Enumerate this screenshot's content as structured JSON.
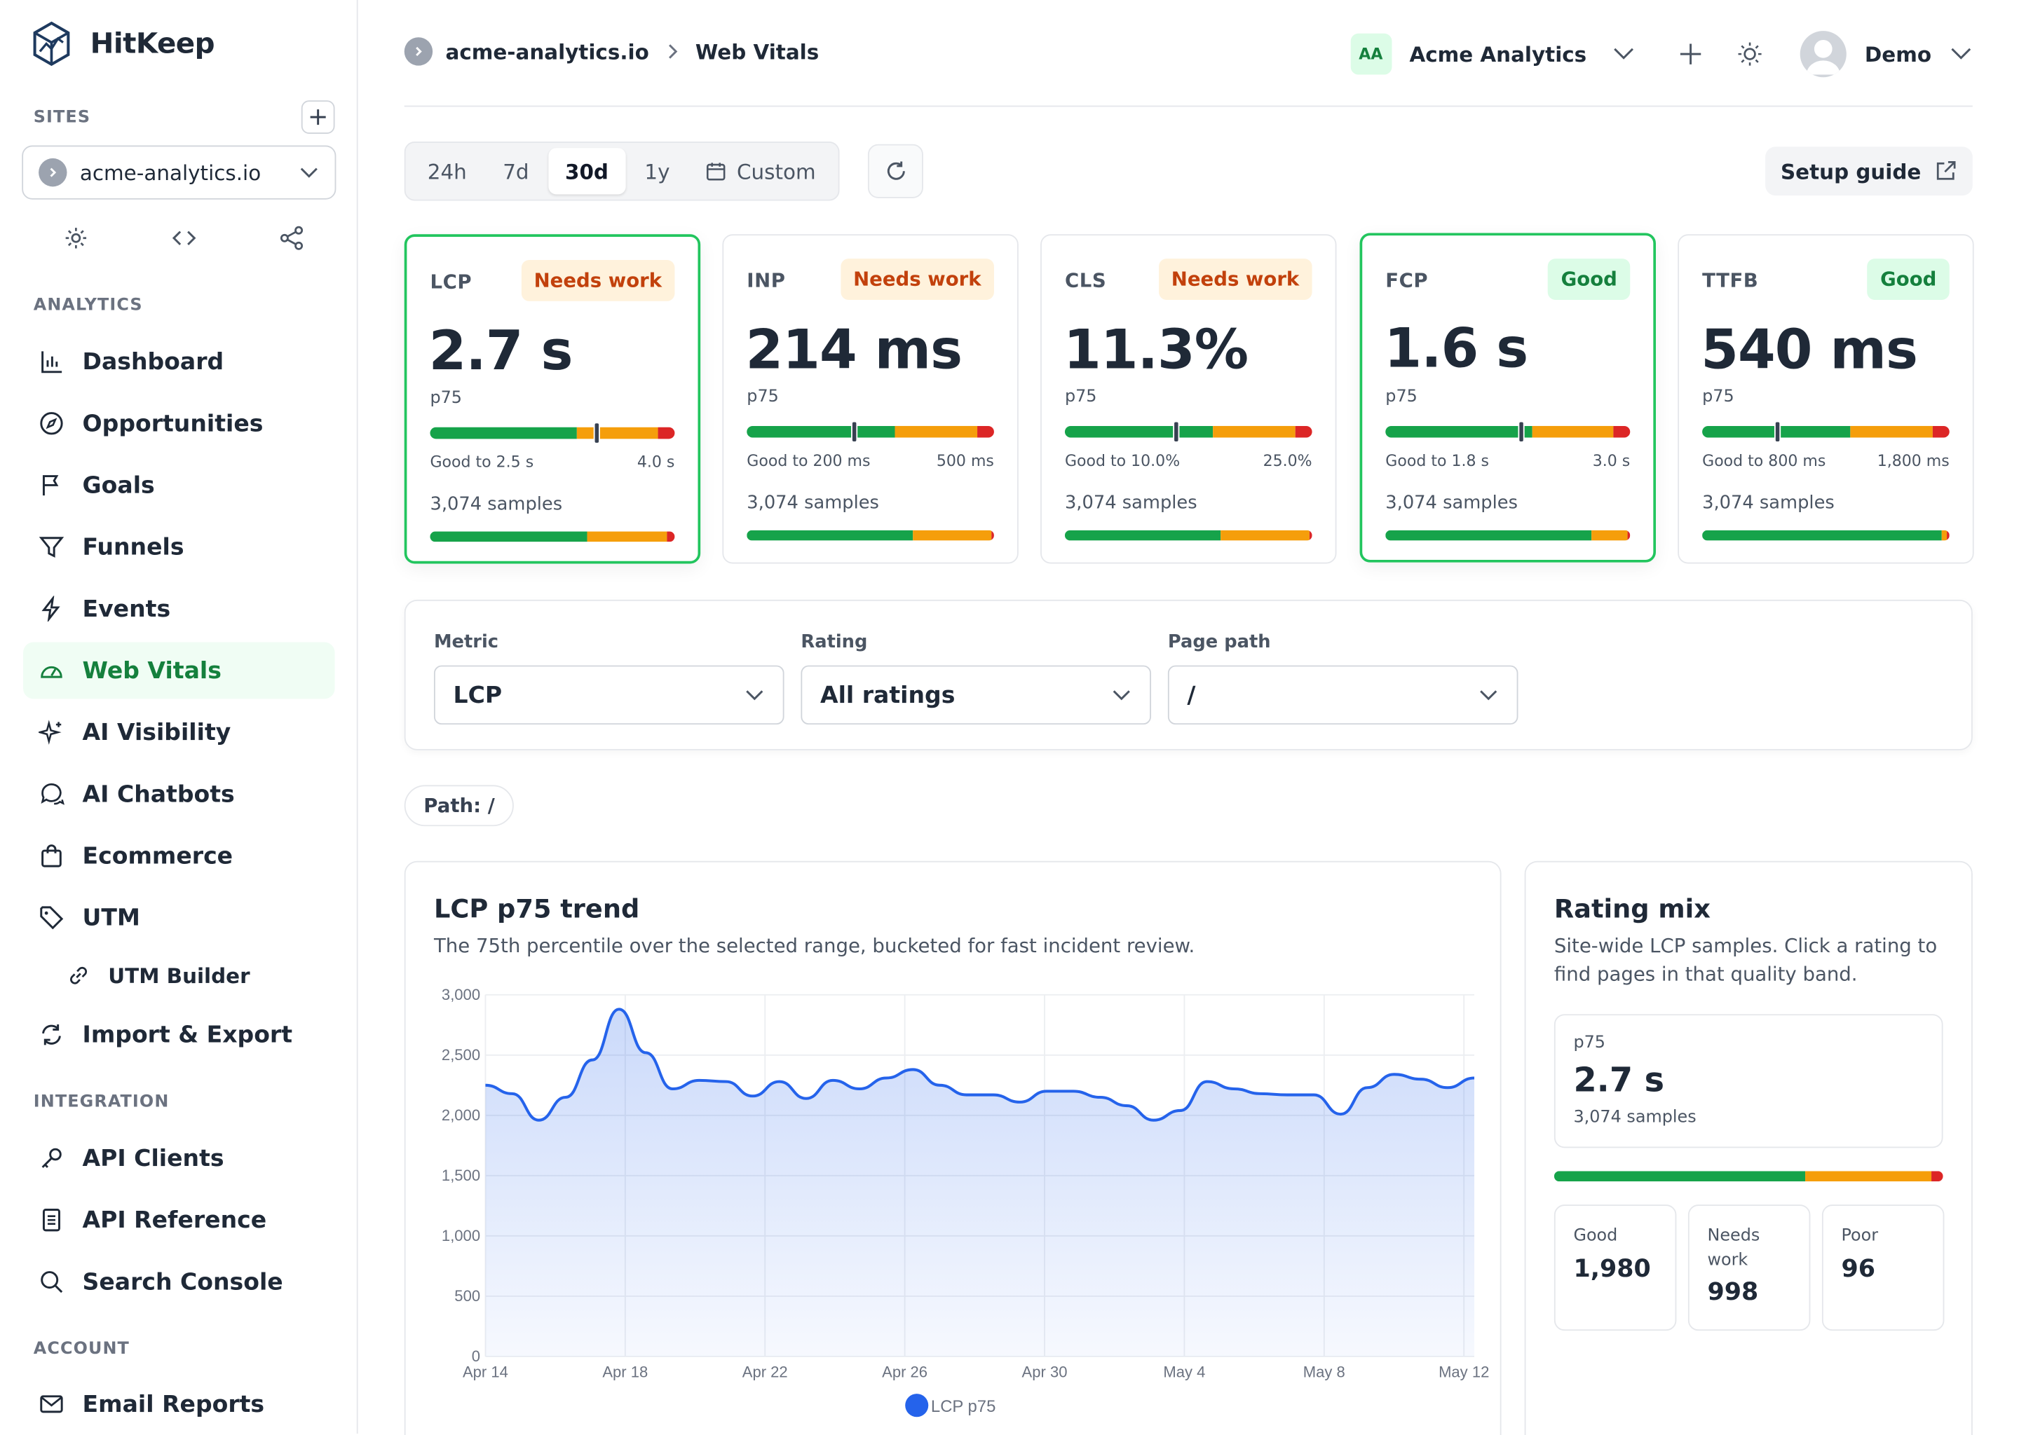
{
  "app": {
    "name": "HitKeep"
  },
  "sidebar": {
    "sites_label": "SITES",
    "site": "acme-analytics.io",
    "sections": {
      "analytics": "ANALYTICS",
      "integration": "INTEGRATION",
      "account": "ACCOUNT"
    },
    "items": [
      {
        "label": "Dashboard"
      },
      {
        "label": "Opportunities"
      },
      {
        "label": "Goals"
      },
      {
        "label": "Funnels"
      },
      {
        "label": "Events"
      },
      {
        "label": "Web Vitals"
      },
      {
        "label": "AI Visibility"
      },
      {
        "label": "AI Chatbots"
      },
      {
        "label": "Ecommerce"
      },
      {
        "label": "UTM"
      },
      {
        "label": "UTM Builder"
      },
      {
        "label": "Import & Export"
      },
      {
        "label": "API Clients"
      },
      {
        "label": "API Reference"
      },
      {
        "label": "Search Console"
      },
      {
        "label": "Email Reports"
      }
    ]
  },
  "header": {
    "breadcrumb": [
      "acme-analytics.io",
      "Web Vitals"
    ],
    "org_initials": "AA",
    "org_name": "Acme Analytics",
    "user": "Demo"
  },
  "toolbar": {
    "ranges": [
      "24h",
      "7d",
      "30d",
      "1y",
      "Custom"
    ],
    "selected_range": "30d",
    "setup_guide": "Setup guide"
  },
  "metrics": [
    {
      "name": "LCP",
      "status": "Needs work",
      "value": "2.7 s",
      "percentile": "p75",
      "good_label": "Good to 2.5 s",
      "poor_label": "4.0 s",
      "samples": "3,074 samples",
      "marker": 0.68,
      "mix": [
        0.64,
        0.33,
        0.03
      ]
    },
    {
      "name": "INP",
      "status": "Needs work",
      "value": "214 ms",
      "percentile": "p75",
      "good_label": "Good to 200 ms",
      "poor_label": "500 ms",
      "samples": "3,074 samples",
      "marker": 0.43,
      "mix": [
        0.67,
        0.32,
        0.01
      ]
    },
    {
      "name": "CLS",
      "status": "Needs work",
      "value": "11.3%",
      "percentile": "p75",
      "good_label": "Good to 10.0%",
      "poor_label": "25.0%",
      "samples": "3,074 samples",
      "marker": 0.45,
      "mix": [
        0.63,
        0.36,
        0.01
      ]
    },
    {
      "name": "FCP",
      "status": "Good",
      "value": "1.6 s",
      "percentile": "p75",
      "good_label": "Good to 1.8 s",
      "poor_label": "3.0 s",
      "samples": "3,074 samples",
      "marker": 0.55,
      "mix": [
        0.84,
        0.15,
        0.01
      ]
    },
    {
      "name": "TTFB",
      "status": "Good",
      "value": "540 ms",
      "percentile": "p75",
      "good_label": "Good to 800 ms",
      "poor_label": "1,800 ms",
      "samples": "3,074 samples",
      "marker": 0.3,
      "mix": [
        0.97,
        0.02,
        0.01
      ]
    }
  ],
  "filters": {
    "metric_label": "Metric",
    "metric": "LCP",
    "rating_label": "Rating",
    "rating": "All ratings",
    "path_label": "Page path",
    "path": "/"
  },
  "path_pill": "Path: /",
  "trend": {
    "title": "LCP p75 trend",
    "subtitle": "The 75th percentile over the selected range, bucketed for fast incident review."
  },
  "chart_data": {
    "type": "area",
    "series": [
      {
        "name": "LCP p75",
        "color": "#2563eb"
      }
    ],
    "ylim": [
      0,
      3000
    ],
    "yticks": [
      "3,000",
      "2,500",
      "2,000",
      "1,500",
      "1,000",
      "500",
      "0"
    ],
    "xticks": [
      "Apr 14",
      "Apr 18",
      "Apr 22",
      "Apr 26",
      "Apr 30",
      "May 4",
      "May 8",
      "May 12"
    ],
    "x": [
      "Apr 14",
      "Apr 15",
      "Apr 16",
      "Apr 17",
      "Apr 17",
      "Apr 18",
      "Apr 18",
      "Apr 19",
      "Apr 20",
      "Apr 21",
      "Apr 22",
      "Apr 22",
      "Apr 23",
      "Apr 24",
      "Apr 24",
      "Apr 25",
      "Apr 26",
      "Apr 26",
      "Apr 27",
      "Apr 28",
      "Apr 29",
      "Apr 30",
      "Apr 30",
      "May 1",
      "May 2",
      "May 3",
      "May 4",
      "May 5",
      "May 5",
      "May 6",
      "May 7",
      "May 8",
      "May 8",
      "May 9",
      "May 10",
      "May 11",
      "May 12",
      "May 13"
    ],
    "values": [
      2250,
      2180,
      1960,
      2150,
      2460,
      2880,
      2520,
      2220,
      2290,
      2280,
      2160,
      2280,
      2140,
      2290,
      2220,
      2310,
      2380,
      2250,
      2170,
      2170,
      2110,
      2200,
      2200,
      2150,
      2080,
      1960,
      2040,
      2280,
      2220,
      2180,
      2170,
      2170,
      2010,
      2230,
      2340,
      2300,
      2230,
      2310
    ],
    "legend": "LCP p75"
  },
  "rating_mix": {
    "title": "Rating mix",
    "subtitle": "Site-wide LCP samples. Click a rating to find pages in that quality band.",
    "p75_label": "p75",
    "p75_value": "2.7 s",
    "samples": "3,074 samples",
    "good_label": "Good",
    "good": "1,980",
    "needs_label": "Needs work",
    "needs": "998",
    "poor_label": "Poor",
    "poor": "96"
  },
  "colors": {
    "good": "#16a34a",
    "needs_work": "#f59e0b",
    "poor": "#dc2626",
    "accent": "#2563eb"
  }
}
